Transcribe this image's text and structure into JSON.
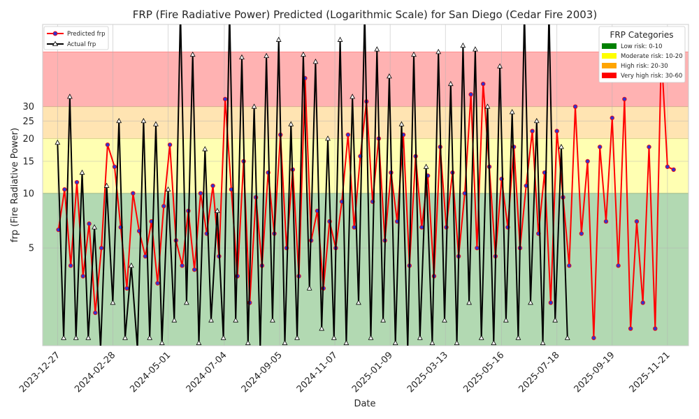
{
  "chart_data": {
    "type": "line",
    "title": "FRP (Fire Radiative Power) Predicted (Logarithmic Scale) for San Diego (Cedar Fire 2003)",
    "xlabel": "Date",
    "ylabel": "frp (Fire Radiative Power)",
    "y_scale": "log",
    "ylim": [
      1.45,
      85
    ],
    "xlim": [
      "2023-12-10",
      "2025-12-15"
    ],
    "grid": true,
    "x_ticks": [
      "2023-12-27",
      "2024-02-28",
      "2024-05-01",
      "2024-07-04",
      "2024-09-05",
      "2024-11-07",
      "2025-01-09",
      "2025-03-13",
      "2025-05-16",
      "2025-07-18",
      "2025-09-19",
      "2025-11-21"
    ],
    "y_ticks": [
      5,
      10,
      15,
      20,
      25,
      30
    ],
    "legend_placement": "top-left",
    "series": [
      {
        "name": "Predicted frp",
        "color": "#ff0000",
        "marker_color": "#3333cc",
        "marker": "circle",
        "x": [
          "2023-12-28",
          "2024-01-04",
          "2024-01-11",
          "2024-01-18",
          "2024-01-25",
          "2024-02-01",
          "2024-02-08",
          "2024-02-15",
          "2024-02-22",
          "2024-03-01",
          "2024-03-08",
          "2024-03-15",
          "2024-03-22",
          "2024-03-29",
          "2024-04-05",
          "2024-04-12",
          "2024-04-19",
          "2024-04-26",
          "2024-05-03",
          "2024-05-10",
          "2024-05-17",
          "2024-05-24",
          "2024-05-31",
          "2024-06-07",
          "2024-06-14",
          "2024-06-21",
          "2024-06-28",
          "2024-07-05",
          "2024-07-12",
          "2024-07-19",
          "2024-07-26",
          "2024-08-02",
          "2024-08-09",
          "2024-08-16",
          "2024-08-23",
          "2024-08-30",
          "2024-09-06",
          "2024-09-13",
          "2024-09-20",
          "2024-09-27",
          "2024-10-04",
          "2024-10-11",
          "2024-10-18",
          "2024-10-25",
          "2024-11-01",
          "2024-11-08",
          "2024-11-15",
          "2024-11-22",
          "2024-11-29",
          "2024-12-06",
          "2024-12-13",
          "2024-12-20",
          "2024-12-27",
          "2025-01-03",
          "2025-01-10",
          "2025-01-17",
          "2025-01-24",
          "2025-01-31",
          "2025-02-07",
          "2025-02-14",
          "2025-02-21",
          "2025-02-28",
          "2025-03-07",
          "2025-03-14",
          "2025-03-21",
          "2025-03-28",
          "2025-04-04",
          "2025-04-11",
          "2025-04-18",
          "2025-04-25",
          "2025-05-02",
          "2025-05-09",
          "2025-05-16",
          "2025-05-23",
          "2025-05-30",
          "2025-06-06",
          "2025-06-13",
          "2025-06-20",
          "2025-06-27",
          "2025-07-04",
          "2025-07-11",
          "2025-07-18",
          "2025-07-25",
          "2025-08-01",
          "2025-08-08",
          "2025-08-15",
          "2025-08-22",
          "2025-08-29",
          "2025-09-05",
          "2025-09-12",
          "2025-09-19",
          "2025-09-26",
          "2025-10-03",
          "2025-10-10",
          "2025-10-17",
          "2025-10-24",
          "2025-10-31",
          "2025-11-07",
          "2025-11-14",
          "2025-11-21",
          "2025-11-28"
        ],
        "values": [
          6.3,
          10.5,
          4.0,
          11.5,
          3.5,
          6.8,
          2.2,
          5.0,
          18.5,
          14.0,
          6.5,
          3.0,
          10.0,
          6.2,
          4.5,
          7.0,
          3.2,
          8.5,
          18.5,
          5.5,
          4.0,
          8.0,
          3.8,
          10.0,
          6.0,
          11.0,
          4.5,
          33.0,
          10.5,
          3.5,
          15.0,
          2.5,
          9.5,
          4.0,
          13.0,
          6.0,
          21.0,
          5.0,
          13.5,
          3.5,
          43.0,
          5.5,
          8.0,
          3.0,
          7.0,
          5.0,
          9.0,
          21.0,
          6.5,
          16.0,
          32.0,
          9.0,
          20.0,
          5.5,
          13.0,
          7.0,
          21.0,
          4.0,
          16.0,
          6.5,
          12.5,
          3.5,
          18.0,
          6.5,
          13.0,
          4.5,
          10.0,
          35.0,
          5.0,
          40.0,
          14.0,
          4.5,
          12.0,
          6.5,
          18.0,
          5.0,
          11.0,
          22.0,
          6.0,
          13.0,
          2.5,
          22.0,
          9.5,
          4.0,
          30.0,
          6.0,
          15.0,
          1.6,
          18.0,
          7.0,
          26.0,
          4.0,
          33.0,
          1.8,
          7.0,
          2.5,
          18.0,
          1.8,
          60.0,
          14.0,
          13.5
        ]
      },
      {
        "name": "Actual frp",
        "color": "#000000",
        "marker_color": "#000000",
        "marker": "triangle",
        "x": [
          "2023-12-27",
          "2024-01-03",
          "2024-01-10",
          "2024-01-17",
          "2024-01-24",
          "2024-01-31",
          "2024-02-07",
          "2024-02-14",
          "2024-02-21",
          "2024-02-28",
          "2024-03-06",
          "2024-03-13",
          "2024-03-20",
          "2024-03-27",
          "2024-04-03",
          "2024-04-10",
          "2024-04-17",
          "2024-04-24",
          "2024-05-01",
          "2024-05-08",
          "2024-05-15",
          "2024-05-22",
          "2024-05-29",
          "2024-06-05",
          "2024-06-12",
          "2024-06-19",
          "2024-06-26",
          "2024-07-03",
          "2024-07-10",
          "2024-07-17",
          "2024-07-24",
          "2024-07-31",
          "2024-08-07",
          "2024-08-14",
          "2024-08-21",
          "2024-08-28",
          "2024-09-04",
          "2024-09-11",
          "2024-09-18",
          "2024-09-25",
          "2024-10-02",
          "2024-10-09",
          "2024-10-16",
          "2024-10-23",
          "2024-10-30",
          "2024-11-06",
          "2024-11-13",
          "2024-11-20",
          "2024-11-27",
          "2024-12-04",
          "2024-12-11",
          "2024-12-18",
          "2024-12-25",
          "2025-01-01",
          "2025-01-08",
          "2025-01-15",
          "2025-01-22",
          "2025-01-29",
          "2025-02-05",
          "2025-02-12",
          "2025-02-19",
          "2025-02-26",
          "2025-03-05",
          "2025-03-12",
          "2025-03-19",
          "2025-03-26",
          "2025-04-02",
          "2025-04-09",
          "2025-04-16",
          "2025-04-23",
          "2025-04-30",
          "2025-05-07",
          "2025-05-14",
          "2025-05-21",
          "2025-05-28",
          "2025-06-04",
          "2025-06-11",
          "2025-06-18",
          "2025-06-25",
          "2025-07-02",
          "2025-07-09",
          "2025-07-16",
          "2025-07-23",
          "2025-07-30"
        ],
        "values": [
          19.0,
          1.6,
          34.0,
          1.6,
          13.0,
          1.6,
          6.5,
          1.4,
          11.0,
          2.5,
          25.0,
          1.6,
          4.0,
          1.4,
          25.0,
          1.6,
          24.0,
          1.5,
          10.5,
          2.0,
          100.0,
          2.5,
          58.0,
          1.5,
          17.5,
          2.0,
          8.0,
          1.6,
          100.0,
          2.0,
          56.0,
          1.5,
          30.0,
          1.4,
          57.0,
          2.0,
          70.0,
          1.5,
          24.0,
          1.6,
          58.0,
          3.0,
          53.0,
          1.8,
          20.0,
          1.6,
          70.0,
          1.5,
          34.0,
          2.5,
          100.0,
          1.6,
          62.0,
          2.0,
          44.0,
          1.5,
          24.0,
          1.4,
          58.0,
          1.6,
          14.0,
          1.5,
          60.0,
          2.0,
          40.0,
          1.5,
          65.0,
          2.5,
          62.0,
          1.6,
          30.0,
          1.5,
          50.0,
          2.0,
          28.0,
          1.6,
          100.0,
          2.5,
          25.0,
          1.5,
          100.0,
          2.0,
          18.0,
          1.6
        ]
      }
    ],
    "bands": [
      {
        "label": "Low risk: 0-10",
        "from": 0,
        "to": 10,
        "color": "#008000"
      },
      {
        "label": "Moderate risk: 10-20",
        "from": 10,
        "to": 20,
        "color": "#ffff00"
      },
      {
        "label": "High risk: 20-30",
        "from": 20,
        "to": 30,
        "color": "#ffa500"
      },
      {
        "label": "Very high risk: 30-60",
        "from": 30,
        "to": 60,
        "color": "#ff0000"
      }
    ],
    "bands_legend_title": "FRP Categories"
  }
}
